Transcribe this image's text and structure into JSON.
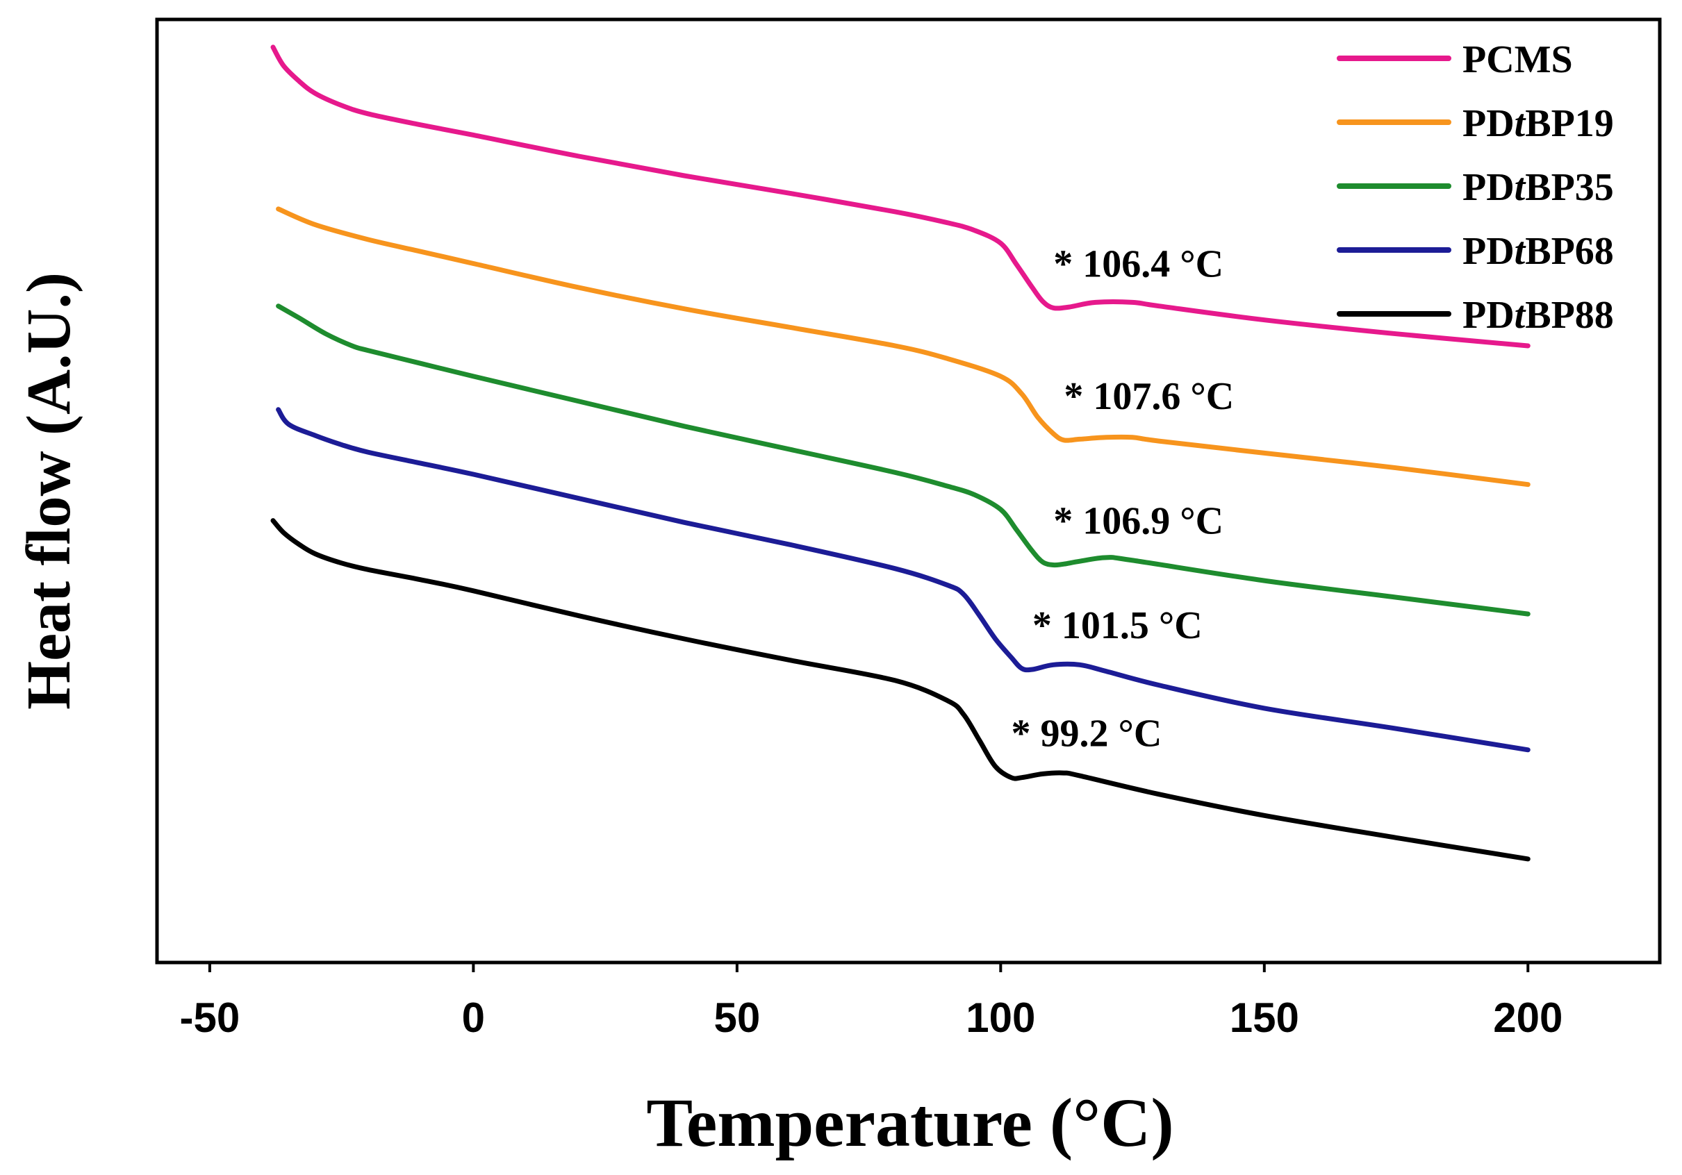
{
  "chart_data": {
    "type": "line",
    "xlabel": "Temperature (°C)",
    "ylabel": "Heat flow (A.U.)",
    "xlim": [
      -60,
      225
    ],
    "ylim": [
      -1.2,
      9
    ],
    "xticks": [
      -50,
      0,
      50,
      100,
      150,
      200
    ],
    "yticks": [],
    "grid": false,
    "legend_position": "top-right",
    "series": [
      {
        "name": "PCMS",
        "name_prefix": "PCMS",
        "name_italic": "",
        "name_suffix": "",
        "color": "#e6198c",
        "Tg": 106.4,
        "annotation": "* 106.4 °C",
        "x": [
          -38,
          -36,
          -33,
          -30,
          -25,
          -20,
          -10,
          0,
          20,
          40,
          60,
          80,
          90,
          95,
          100,
          103,
          106,
          108,
          110,
          113,
          118,
          125,
          130,
          150,
          175,
          200
        ],
        "y": [
          8.7,
          8.5,
          8.33,
          8.2,
          8.07,
          7.98,
          7.86,
          7.75,
          7.52,
          7.31,
          7.12,
          6.92,
          6.8,
          6.72,
          6.58,
          6.35,
          6.1,
          5.95,
          5.88,
          5.89,
          5.94,
          5.94,
          5.9,
          5.75,
          5.6,
          5.47
        ]
      },
      {
        "name": "PDtBP19",
        "name_prefix": "PD",
        "name_italic": "t",
        "name_suffix": "BP19",
        "color": "#f7941d",
        "Tg": 107.6,
        "annotation": "* 107.6 °C",
        "x": [
          -37,
          -30,
          -20,
          -10,
          0,
          20,
          40,
          60,
          80,
          90,
          100,
          104,
          107,
          110,
          112,
          115,
          120,
          125,
          130,
          150,
          175,
          200
        ],
        "y": [
          6.95,
          6.78,
          6.62,
          6.49,
          6.36,
          6.1,
          5.87,
          5.67,
          5.47,
          5.33,
          5.14,
          4.95,
          4.7,
          4.52,
          4.45,
          4.46,
          4.48,
          4.48,
          4.44,
          4.31,
          4.15,
          3.97
        ]
      },
      {
        "name": "PDtBP35",
        "name_prefix": "PD",
        "name_italic": "t",
        "name_suffix": "BP35",
        "color": "#1e8c2e",
        "Tg": 106.9,
        "annotation": "* 106.9 °C",
        "x": [
          -37,
          -33,
          -28,
          -23,
          -20,
          -10,
          0,
          20,
          40,
          60,
          80,
          90,
          95,
          100,
          103,
          106,
          108,
          110,
          112,
          115,
          120,
          125,
          150,
          175,
          200
        ],
        "y": [
          5.9,
          5.77,
          5.6,
          5.47,
          5.42,
          5.28,
          5.14,
          4.87,
          4.6,
          4.35,
          4.1,
          3.95,
          3.86,
          3.7,
          3.48,
          3.25,
          3.13,
          3.1,
          3.11,
          3.14,
          3.18,
          3.15,
          2.93,
          2.75,
          2.57
        ]
      },
      {
        "name": "PDtBP68",
        "name_prefix": "PD",
        "name_italic": "t",
        "name_suffix": "BP68",
        "color": "#1c1c96",
        "Tg": 101.5,
        "annotation": "* 101.5 °C",
        "x": [
          -37,
          -35,
          -30,
          -25,
          -20,
          -10,
          0,
          20,
          40,
          60,
          80,
          90,
          93,
          96,
          99,
          102,
          104,
          106,
          110,
          115,
          120,
          130,
          150,
          175,
          200
        ],
        "y": [
          4.78,
          4.62,
          4.5,
          4.4,
          4.32,
          4.2,
          4.08,
          3.82,
          3.56,
          3.32,
          3.06,
          2.88,
          2.78,
          2.55,
          2.3,
          2.1,
          1.98,
          1.97,
          2.02,
          2.02,
          1.95,
          1.8,
          1.55,
          1.33,
          1.1
        ]
      },
      {
        "name": "PDtBP88",
        "name_prefix": "PD",
        "name_italic": "t",
        "name_suffix": "BP88",
        "color": "#000000",
        "Tg": 99.2,
        "annotation": "* 99.2 °C",
        "x": [
          -38,
          -36,
          -33,
          -30,
          -25,
          -20,
          -10,
          0,
          20,
          40,
          60,
          80,
          90,
          93,
          96,
          99,
          102,
          104,
          108,
          112,
          115,
          130,
          150,
          175,
          200
        ],
        "y": [
          3.58,
          3.45,
          3.32,
          3.22,
          3.12,
          3.05,
          2.94,
          2.82,
          2.55,
          2.3,
          2.07,
          1.85,
          1.63,
          1.48,
          1.2,
          0.92,
          0.8,
          0.8,
          0.84,
          0.85,
          0.82,
          0.62,
          0.39,
          0.15,
          -0.08
        ]
      }
    ]
  }
}
